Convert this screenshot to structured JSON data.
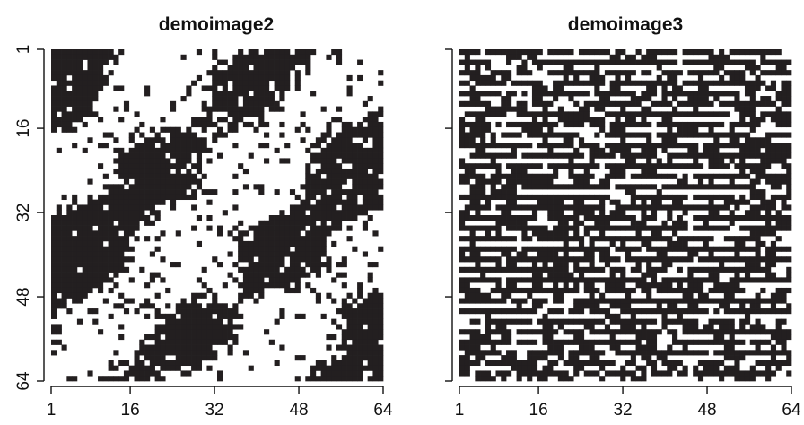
{
  "chart_data": [
    {
      "type": "heatmap",
      "title": "demoimage2",
      "xlabel": "",
      "ylabel": "",
      "grid_size": [
        64,
        64
      ],
      "xlim": [
        1,
        64
      ],
      "ylim": [
        64,
        1
      ],
      "x_ticks": [
        1,
        16,
        32,
        48,
        64
      ],
      "y_ticks": [
        1,
        16,
        32,
        48,
        64
      ],
      "colors": {
        "on": "#231f20",
        "off": "#ffffff"
      },
      "pattern": "binary image with diagonal black bands running from bottom-left to top-right"
    },
    {
      "type": "heatmap",
      "title": "demoimage3",
      "xlabel": "",
      "ylabel": "",
      "grid_size": [
        64,
        64
      ],
      "xlim": [
        1,
        64
      ],
      "ylim": [
        64,
        1
      ],
      "x_ticks": [
        1,
        16,
        32,
        48,
        64
      ],
      "y_ticks": [
        1,
        16,
        32,
        48,
        64
      ],
      "colors": {
        "on": "#231f20",
        "off": "#ffffff"
      },
      "pattern": "binary image with fine horizontal striping texture"
    }
  ]
}
